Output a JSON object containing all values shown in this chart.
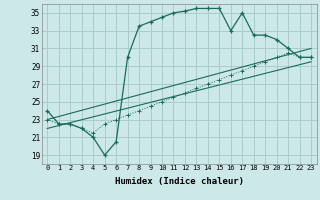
{
  "bg_color": "#cce8e8",
  "grid_color": "#aacccc",
  "line_color": "#1a6b5a",
  "x_label": "Humidex (Indice chaleur)",
  "ylim": [
    18,
    36
  ],
  "xlim": [
    -0.5,
    23.5
  ],
  "yticks": [
    19,
    21,
    23,
    25,
    27,
    29,
    31,
    33,
    35
  ],
  "xticks": [
    0,
    1,
    2,
    3,
    4,
    5,
    6,
    7,
    8,
    9,
    10,
    11,
    12,
    13,
    14,
    15,
    16,
    17,
    18,
    19,
    20,
    21,
    22,
    23
  ],
  "series1_x": [
    0,
    1,
    2,
    3,
    4,
    5,
    6,
    7,
    8,
    9,
    10,
    11,
    12,
    13,
    14,
    15,
    16,
    17,
    18,
    19,
    20,
    21,
    22,
    23
  ],
  "series1_y": [
    24.0,
    22.5,
    22.5,
    22.0,
    21.0,
    19.0,
    20.5,
    30.0,
    33.5,
    34.0,
    34.5,
    35.0,
    35.2,
    35.5,
    35.5,
    35.5,
    33.0,
    35.0,
    32.5,
    32.5,
    32.0,
    31.0,
    30.0,
    30.0
  ],
  "series2_x": [
    0,
    1,
    2,
    3,
    4,
    5,
    6,
    7,
    8,
    9,
    10,
    11,
    12,
    13,
    14,
    15,
    16,
    17,
    18,
    19,
    20,
    21,
    22,
    23
  ],
  "series2_y": [
    23.0,
    22.5,
    22.5,
    22.0,
    21.5,
    22.5,
    23.0,
    23.5,
    24.0,
    24.5,
    25.0,
    25.5,
    26.0,
    26.5,
    27.0,
    27.5,
    28.0,
    28.5,
    29.0,
    29.5,
    30.0,
    30.5,
    30.0,
    30.0
  ],
  "series3_x": [
    0,
    23
  ],
  "series3_y": [
    23.0,
    31.0
  ],
  "series4_x": [
    0,
    23
  ],
  "series4_y": [
    22.0,
    29.5
  ]
}
